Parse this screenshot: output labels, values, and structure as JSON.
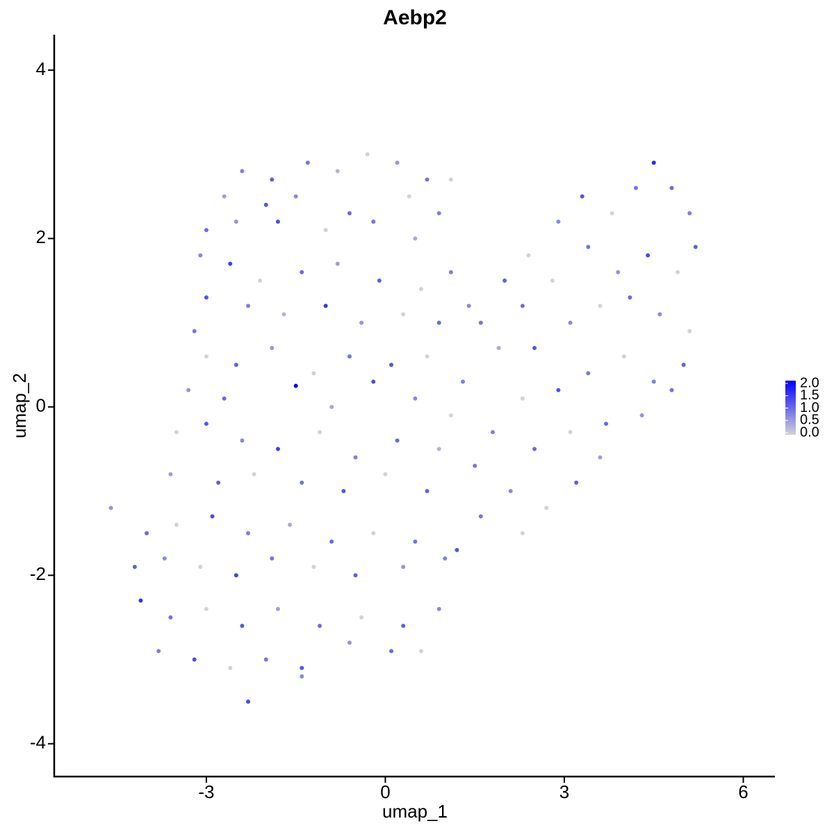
{
  "chart_data": {
    "type": "scatter",
    "title": "Aebp2",
    "x_label": "umap_1",
    "y_label": "umap_2",
    "xlim": [
      -5.55,
      6.53
    ],
    "ylim": [
      -4.39,
      4.42
    ],
    "xticks": [
      -3,
      0,
      3,
      6
    ],
    "yticks": [
      -4,
      -2,
      0,
      2,
      4
    ],
    "x": [
      -2.4,
      -1.9,
      -1.3,
      -0.8,
      -0.3,
      0.2,
      0.7,
      1.1,
      -2.7,
      -2.0,
      -1.5,
      -0.6,
      0.4,
      0.9,
      -3.0,
      -2.5,
      -1.8,
      -1.0,
      -0.2,
      0.5,
      -3.1,
      -2.6,
      -2.1,
      -1.4,
      -0.8,
      -0.1,
      0.6,
      1.1,
      -3.0,
      -2.3,
      -1.7,
      -1.0,
      -0.4,
      0.3,
      0.9,
      1.4,
      -3.2,
      -3.0,
      -2.5,
      -1.9,
      -1.2,
      -0.6,
      0.1,
      0.7,
      1.3,
      -3.3,
      -2.7,
      -1.5,
      -0.9,
      -0.2,
      0.5,
      1.1,
      -3.5,
      -3.0,
      -2.4,
      -1.8,
      -1.1,
      -0.5,
      0.2,
      0.9,
      1.5,
      -3.6,
      -2.8,
      -2.2,
      -1.4,
      -0.7,
      0.0,
      0.7,
      -4.6,
      -4.0,
      -3.5,
      -2.9,
      -2.3,
      -1.6,
      -0.9,
      -0.2,
      0.5,
      1.2,
      -4.2,
      -3.7,
      -3.1,
      -2.5,
      -1.9,
      -1.2,
      -0.5,
      0.3,
      1.0,
      -4.1,
      -3.6,
      -3.0,
      -2.4,
      -1.8,
      -1.1,
      -0.4,
      0.3,
      0.9,
      -3.8,
      -3.2,
      -2.6,
      -2.0,
      -1.4,
      -0.6,
      0.1,
      0.6,
      -2.3,
      -1.4,
      1.6,
      2.0,
      2.4,
      2.9,
      3.3,
      3.8,
      4.2,
      4.5,
      4.8,
      5.1,
      5.2,
      4.9,
      4.4,
      3.9,
      3.4,
      2.8,
      2.3,
      1.9,
      2.5,
      3.1,
      3.6,
      4.1,
      4.6,
      5.1,
      5.0,
      4.5,
      4.0,
      3.4,
      2.9,
      2.3,
      1.8,
      2.5,
      3.1,
      3.7,
      4.3,
      4.8,
      2.1,
      2.7,
      3.2,
      3.6,
      1.6,
      2.3
    ],
    "values": [
      2.8,
      2.7,
      2.9,
      2.8,
      3.0,
      2.9,
      2.7,
      2.7,
      2.5,
      2.4,
      2.5,
      2.3,
      2.5,
      2.3,
      2.1,
      2.2,
      2.2,
      2.1,
      2.2,
      2.0,
      1.8,
      1.7,
      1.5,
      1.6,
      1.7,
      1.5,
      1.4,
      1.6,
      1.3,
      1.2,
      1.1,
      1.2,
      1.0,
      1.1,
      1.0,
      1.2,
      0.9,
      0.6,
      0.5,
      0.7,
      0.4,
      0.6,
      0.5,
      0.6,
      0.3,
      0.2,
      0.1,
      0.25,
      0.0,
      0.3,
      0.1,
      -0.1,
      -0.3,
      -0.2,
      -0.4,
      -0.5,
      -0.3,
      -0.6,
      -0.4,
      -0.5,
      -0.7,
      -0.8,
      -0.9,
      -0.8,
      -0.9,
      -1.0,
      -0.8,
      -1.0,
      -1.2,
      -1.5,
      -1.4,
      -1.3,
      -1.5,
      -1.4,
      -1.6,
      -1.5,
      -1.6,
      -1.7,
      -1.9,
      -1.8,
      -1.9,
      -2.0,
      -1.8,
      -1.9,
      -2.0,
      -1.9,
      -1.8,
      -2.3,
      -2.5,
      -2.4,
      -2.6,
      -2.4,
      -2.6,
      -2.5,
      -2.6,
      -2.4,
      -2.9,
      -3.0,
      -3.1,
      -3.0,
      -3.1,
      -2.8,
      -2.9,
      -2.9,
      -3.5,
      -3.2,
      1.0,
      1.5,
      1.8,
      2.2,
      2.5,
      2.3,
      2.6,
      2.9,
      2.6,
      2.3,
      1.9,
      1.6,
      1.8,
      1.6,
      1.9,
      1.5,
      1.2,
      0.7,
      0.7,
      1.0,
      1.2,
      1.3,
      1.1,
      0.9,
      0.5,
      0.3,
      0.6,
      0.4,
      0.2,
      0.1,
      -0.3,
      -0.5,
      -0.3,
      -0.2,
      -0.1,
      0.2,
      -1.0,
      -1.2,
      -0.9,
      -0.6,
      -1.3,
      -1.5
    ],
    "expression": [
      0.8,
      1.1,
      0.9,
      0.3,
      0,
      0.6,
      0.9,
      0,
      0.5,
      1.2,
      0.7,
      1.0,
      0,
      0.8,
      1.0,
      0.6,
      1.3,
      0,
      0.9,
      0.4,
      0.7,
      1.4,
      0,
      1.0,
      0.5,
      1.1,
      0,
      0.8,
      1.2,
      0.8,
      0.3,
      1.5,
      0.6,
      0,
      1.0,
      0.7,
      0.9,
      0,
      1.1,
      0.6,
      0,
      0.9,
      1.2,
      0,
      0.8,
      0.6,
      1.0,
      2.0,
      0.4,
      1.3,
      0.7,
      0,
      0,
      1.2,
      0.7,
      1.4,
      0,
      0.8,
      1.0,
      0.3,
      0.9,
      0.5,
      1.1,
      0,
      0.9,
      1.2,
      0,
      1.1,
      0.6,
      1.0,
      0,
      1.3,
      0.8,
      0.4,
      1.0,
      0,
      0.9,
      1.2,
      1.1,
      0.7,
      0,
      1.4,
      0.9,
      0,
      1.1,
      0.6,
      0.8,
      1.5,
      0.9,
      0,
      1.2,
      0.5,
      1.0,
      0,
      1.1,
      0.7,
      0.8,
      1.3,
      0,
      0.9,
      1.2,
      0.6,
      1.0,
      0,
      1.3,
      0.7,
      0.9,
      1.1,
      0,
      0.7,
      1.2,
      0,
      0.9,
      1.6,
      1.0,
      0.8,
      1.1,
      0,
      1.3,
      0.6,
      0.9,
      0,
      1.0,
      0.4,
      1.2,
      0.7,
      0,
      1.0,
      0.7,
      0,
      1.1,
      0.8,
      0,
      0.9,
      1.2,
      0,
      0.8,
      1.0,
      0,
      1.0,
      0.6,
      0.9,
      0.7,
      0,
      1.1,
      0.5,
      0.9,
      0
    ],
    "colorbar": {
      "lim": [
        0,
        2
      ],
      "colors": [
        "#d3d3d3",
        "#0000ff"
      ],
      "ticks": [
        {
          "value": 0,
          "label": "0.0"
        },
        {
          "value": 0.5,
          "label": "0.5"
        },
        {
          "value": 1,
          "label": "1.0"
        },
        {
          "value": 1.5,
          "label": "1.5"
        },
        {
          "value": 2,
          "label": "2.0"
        }
      ]
    }
  }
}
